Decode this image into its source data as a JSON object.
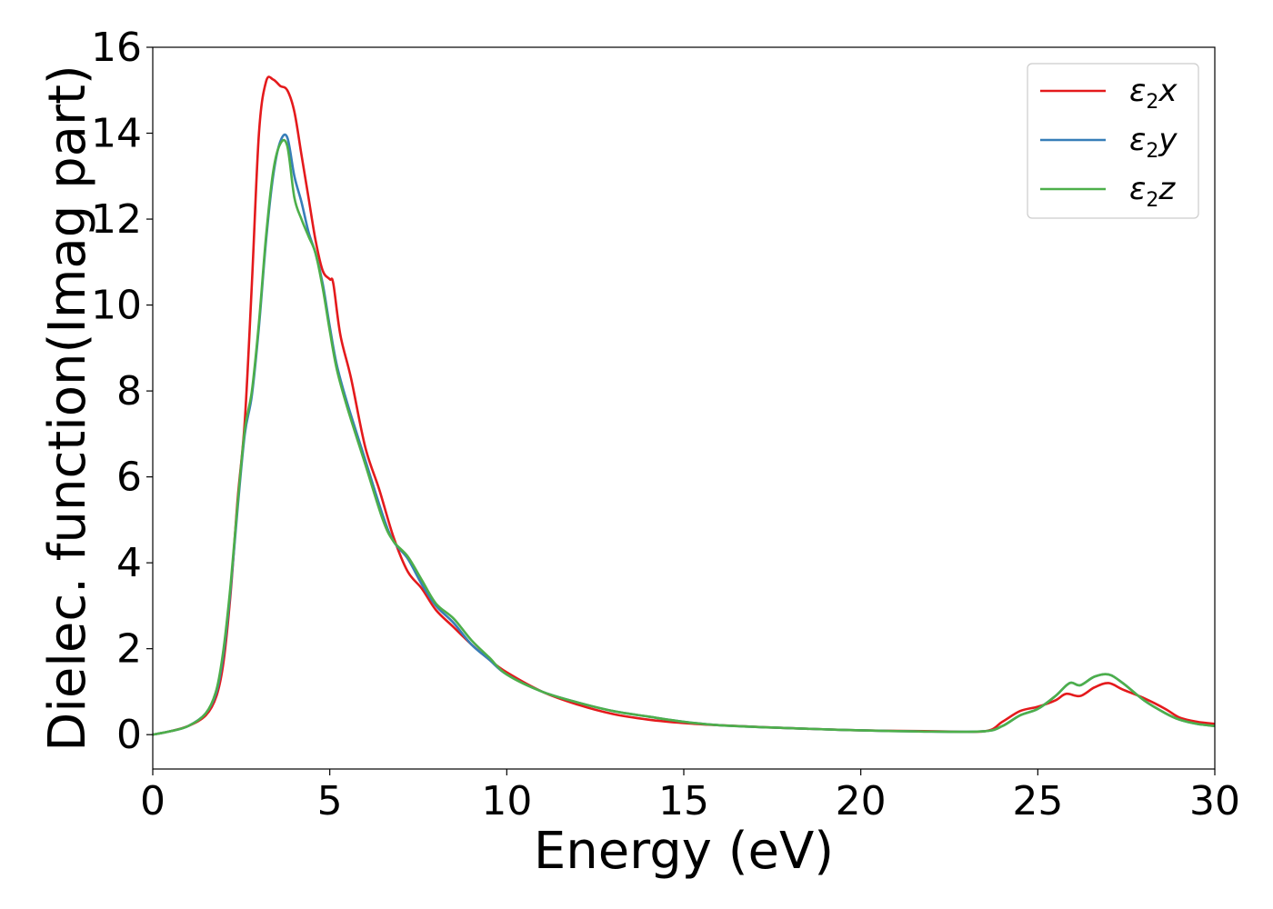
{
  "chart_data": {
    "type": "line",
    "title": "",
    "xlabel": "Energy (eV)",
    "ylabel": "Dielec. function(Imag part)",
    "xlim": [
      0,
      30
    ],
    "ylim": [
      -0.8,
      16
    ],
    "xticks": [
      0,
      5,
      10,
      15,
      20,
      25,
      30
    ],
    "yticks": [
      0,
      2,
      4,
      6,
      8,
      10,
      12,
      14,
      16
    ],
    "grid": false,
    "legend_position": "top-right",
    "series": [
      {
        "name": "ε2x",
        "label_base": "ε",
        "label_sub": "2",
        "label_var": "x",
        "color": "#e41a1c",
        "points": [
          [
            0,
            0.0
          ],
          [
            0.5,
            0.08
          ],
          [
            1.0,
            0.2
          ],
          [
            1.5,
            0.45
          ],
          [
            1.8,
            0.9
          ],
          [
            2.0,
            1.7
          ],
          [
            2.2,
            3.3
          ],
          [
            2.4,
            5.5
          ],
          [
            2.6,
            7.3
          ],
          [
            2.8,
            10.5
          ],
          [
            3.0,
            14.0
          ],
          [
            3.2,
            15.2
          ],
          [
            3.4,
            15.25
          ],
          [
            3.6,
            15.1
          ],
          [
            3.8,
            15.0
          ],
          [
            4.0,
            14.5
          ],
          [
            4.2,
            13.5
          ],
          [
            4.4,
            12.5
          ],
          [
            4.6,
            11.5
          ],
          [
            4.8,
            10.8
          ],
          [
            5.0,
            10.6
          ],
          [
            5.1,
            10.5
          ],
          [
            5.3,
            9.3
          ],
          [
            5.6,
            8.3
          ],
          [
            6.0,
            6.7
          ],
          [
            6.4,
            5.7
          ],
          [
            6.8,
            4.6
          ],
          [
            7.2,
            3.8
          ],
          [
            7.6,
            3.4
          ],
          [
            8.0,
            2.9
          ],
          [
            8.5,
            2.5
          ],
          [
            9.0,
            2.1
          ],
          [
            9.5,
            1.75
          ],
          [
            10.0,
            1.45
          ],
          [
            11.0,
            1.0
          ],
          [
            12.0,
            0.7
          ],
          [
            13.0,
            0.48
          ],
          [
            14.0,
            0.35
          ],
          [
            15.0,
            0.27
          ],
          [
            16.0,
            0.22
          ],
          [
            18.0,
            0.15
          ],
          [
            20.0,
            0.1
          ],
          [
            22.0,
            0.08
          ],
          [
            23.5,
            0.08
          ],
          [
            24.0,
            0.3
          ],
          [
            24.5,
            0.55
          ],
          [
            25.0,
            0.65
          ],
          [
            25.5,
            0.8
          ],
          [
            25.8,
            0.95
          ],
          [
            26.2,
            0.9
          ],
          [
            26.6,
            1.1
          ],
          [
            27.0,
            1.2
          ],
          [
            27.4,
            1.05
          ],
          [
            28.0,
            0.85
          ],
          [
            28.6,
            0.6
          ],
          [
            29.0,
            0.4
          ],
          [
            29.5,
            0.3
          ],
          [
            30.0,
            0.25
          ]
        ]
      },
      {
        "name": "ε2y",
        "label_base": "ε",
        "label_sub": "2",
        "label_var": "y",
        "color": "#377eb8",
        "points": [
          [
            0,
            0.0
          ],
          [
            0.5,
            0.08
          ],
          [
            1.0,
            0.2
          ],
          [
            1.5,
            0.5
          ],
          [
            1.8,
            1.0
          ],
          [
            2.0,
            1.9
          ],
          [
            2.2,
            3.4
          ],
          [
            2.4,
            5.3
          ],
          [
            2.6,
            7.0
          ],
          [
            2.8,
            7.9
          ],
          [
            3.0,
            9.5
          ],
          [
            3.2,
            11.5
          ],
          [
            3.4,
            13.0
          ],
          [
            3.6,
            13.8
          ],
          [
            3.8,
            13.9
          ],
          [
            4.0,
            13.0
          ],
          [
            4.2,
            12.4
          ],
          [
            4.4,
            11.7
          ],
          [
            4.6,
            11.2
          ],
          [
            4.8,
            10.5
          ],
          [
            5.0,
            9.5
          ],
          [
            5.2,
            8.6
          ],
          [
            5.5,
            7.7
          ],
          [
            6.0,
            6.4
          ],
          [
            6.5,
            5.1
          ],
          [
            6.8,
            4.5
          ],
          [
            7.2,
            4.1
          ],
          [
            7.6,
            3.5
          ],
          [
            8.0,
            3.0
          ],
          [
            8.5,
            2.6
          ],
          [
            9.0,
            2.1
          ],
          [
            9.5,
            1.75
          ],
          [
            10.0,
            1.4
          ],
          [
            11.0,
            1.0
          ],
          [
            12.0,
            0.75
          ],
          [
            13.0,
            0.55
          ],
          [
            14.0,
            0.42
          ],
          [
            15.0,
            0.3
          ],
          [
            16.0,
            0.22
          ],
          [
            18.0,
            0.15
          ],
          [
            20.0,
            0.1
          ],
          [
            22.0,
            0.07
          ],
          [
            23.5,
            0.08
          ],
          [
            24.0,
            0.2
          ],
          [
            24.5,
            0.45
          ],
          [
            25.0,
            0.6
          ],
          [
            25.5,
            0.9
          ],
          [
            25.9,
            1.2
          ],
          [
            26.2,
            1.15
          ],
          [
            26.6,
            1.35
          ],
          [
            27.0,
            1.4
          ],
          [
            27.4,
            1.2
          ],
          [
            28.0,
            0.8
          ],
          [
            28.6,
            0.5
          ],
          [
            29.0,
            0.35
          ],
          [
            29.5,
            0.25
          ],
          [
            30.0,
            0.2
          ]
        ]
      },
      {
        "name": "ε2z",
        "label_base": "ε",
        "label_sub": "2",
        "label_var": "z",
        "color": "#4daf4a",
        "points": [
          [
            0,
            0.0
          ],
          [
            0.5,
            0.08
          ],
          [
            1.0,
            0.2
          ],
          [
            1.5,
            0.5
          ],
          [
            1.8,
            1.05
          ],
          [
            2.0,
            2.0
          ],
          [
            2.2,
            3.5
          ],
          [
            2.4,
            5.4
          ],
          [
            2.6,
            7.1
          ],
          [
            2.8,
            8.0
          ],
          [
            3.0,
            9.6
          ],
          [
            3.2,
            11.6
          ],
          [
            3.4,
            13.1
          ],
          [
            3.6,
            13.75
          ],
          [
            3.8,
            13.7
          ],
          [
            4.0,
            12.5
          ],
          [
            4.2,
            12.0
          ],
          [
            4.4,
            11.6
          ],
          [
            4.6,
            11.2
          ],
          [
            4.8,
            10.4
          ],
          [
            5.0,
            9.4
          ],
          [
            5.2,
            8.5
          ],
          [
            5.5,
            7.6
          ],
          [
            6.0,
            6.3
          ],
          [
            6.5,
            5.0
          ],
          [
            6.8,
            4.5
          ],
          [
            7.2,
            4.15
          ],
          [
            7.6,
            3.6
          ],
          [
            8.0,
            3.05
          ],
          [
            8.5,
            2.7
          ],
          [
            9.0,
            2.2
          ],
          [
            9.5,
            1.8
          ],
          [
            10.0,
            1.4
          ],
          [
            11.0,
            1.0
          ],
          [
            12.0,
            0.75
          ],
          [
            13.0,
            0.55
          ],
          [
            14.0,
            0.42
          ],
          [
            15.0,
            0.3
          ],
          [
            16.0,
            0.22
          ],
          [
            18.0,
            0.15
          ],
          [
            20.0,
            0.1
          ],
          [
            22.0,
            0.07
          ],
          [
            23.5,
            0.08
          ],
          [
            24.0,
            0.2
          ],
          [
            24.5,
            0.45
          ],
          [
            25.0,
            0.6
          ],
          [
            25.5,
            0.9
          ],
          [
            25.9,
            1.2
          ],
          [
            26.2,
            1.15
          ],
          [
            26.6,
            1.35
          ],
          [
            27.0,
            1.4
          ],
          [
            27.4,
            1.2
          ],
          [
            28.0,
            0.8
          ],
          [
            28.6,
            0.5
          ],
          [
            29.0,
            0.35
          ],
          [
            29.5,
            0.25
          ],
          [
            30.0,
            0.2
          ]
        ]
      }
    ]
  }
}
